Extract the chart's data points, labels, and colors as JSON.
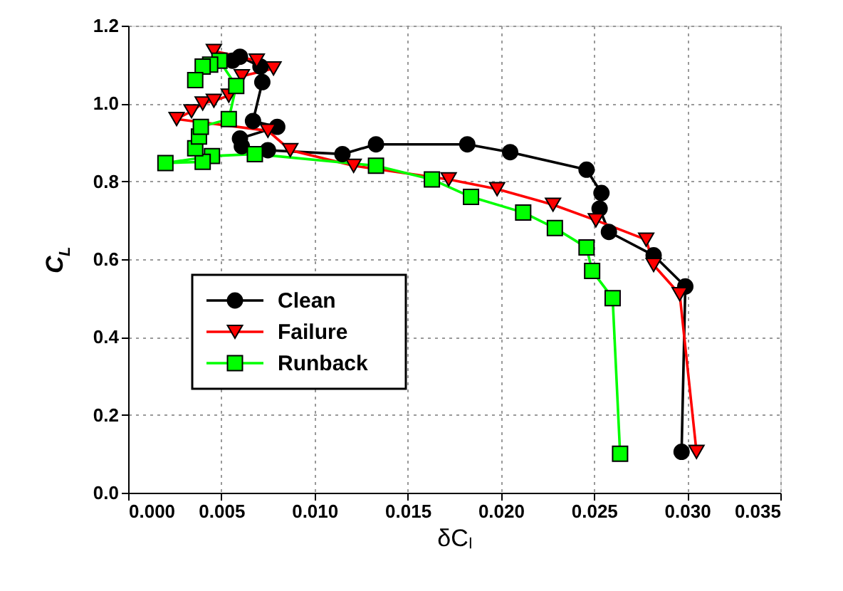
{
  "chart_data": {
    "type": "line",
    "xlabel": "δCₗ",
    "ylabel": "C$_{L}$",
    "xlim": [
      0,
      0.035
    ],
    "ylim": [
      0,
      1.2
    ],
    "xticks": [
      {
        "value": 0,
        "label": "0.000"
      },
      {
        "value": 0.005,
        "label": "0.005"
      },
      {
        "value": 0.01,
        "label": "0.010"
      },
      {
        "value": 0.015,
        "label": "0.015"
      },
      {
        "value": 0.02,
        "label": "0.020"
      },
      {
        "value": 0.025,
        "label": "0.025"
      },
      {
        "value": 0.03,
        "label": "0.030"
      },
      {
        "value": 0.035,
        "label": "0.035"
      }
    ],
    "yticks": [
      {
        "value": 0,
        "label": "0.0"
      },
      {
        "value": 0.2,
        "label": "0.2"
      },
      {
        "value": 0.4,
        "label": "0.4"
      },
      {
        "value": 0.6,
        "label": "0.6"
      },
      {
        "value": 0.8,
        "label": "0.8"
      },
      {
        "value": 1.0,
        "label": "1.0"
      },
      {
        "value": 1.2,
        "label": "1.2"
      }
    ],
    "grid": true,
    "legend": "left",
    "line_style": "solid",
    "series": [
      {
        "name": "Clean",
        "color": "#000000",
        "marker": "circle",
        "x": [
          0.0297,
          0.0299,
          0.0282,
          0.0258,
          0.0253,
          0.0254,
          0.0246,
          0.0205,
          0.0182,
          0.0133,
          0.0115,
          0.0075,
          0.0061,
          0.006,
          0.008,
          0.0067,
          0.0072,
          0.0071,
          0.006,
          0.0056
        ],
        "values": [
          0.105,
          0.53,
          0.61,
          0.67,
          0.73,
          0.77,
          0.83,
          0.875,
          0.895,
          0.895,
          0.87,
          0.88,
          0.89,
          0.91,
          0.94,
          0.955,
          1.055,
          1.095,
          1.12,
          1.11
        ]
      },
      {
        "name": "Failure",
        "color": "#ff0000",
        "marker": "triangle",
        "x": [
          0.0305,
          0.0296,
          0.0282,
          0.0278,
          0.0251,
          0.0228,
          0.0198,
          0.0172,
          0.0121,
          0.0087,
          0.0075,
          0.0026,
          0.0034,
          0.004,
          0.0046,
          0.0054,
          0.0061,
          0.0078,
          0.0069,
          0.0046
        ],
        "values": [
          0.105,
          0.51,
          0.585,
          0.65,
          0.7,
          0.74,
          0.78,
          0.805,
          0.84,
          0.88,
          0.93,
          0.96,
          0.98,
          1.0,
          1.007,
          1.02,
          1.07,
          1.09,
          1.11,
          1.135
        ]
      },
      {
        "name": "Runback",
        "color": "#00ff00",
        "marker": "square",
        "x": [
          0.0264,
          0.026,
          0.0249,
          0.0246,
          0.0229,
          0.0212,
          0.0184,
          0.0163,
          0.0133,
          0.0068,
          0.0045,
          0.002,
          0.004,
          0.0036,
          0.0038,
          0.0039,
          0.0054,
          0.0058,
          0.0049,
          0.0044,
          0.004,
          0.0036
        ],
        "values": [
          0.1,
          0.5,
          0.57,
          0.63,
          0.68,
          0.72,
          0.76,
          0.805,
          0.84,
          0.87,
          0.865,
          0.847,
          0.85,
          0.885,
          0.915,
          0.94,
          0.96,
          1.045,
          1.11,
          1.1,
          1.095,
          1.06
        ]
      }
    ]
  }
}
